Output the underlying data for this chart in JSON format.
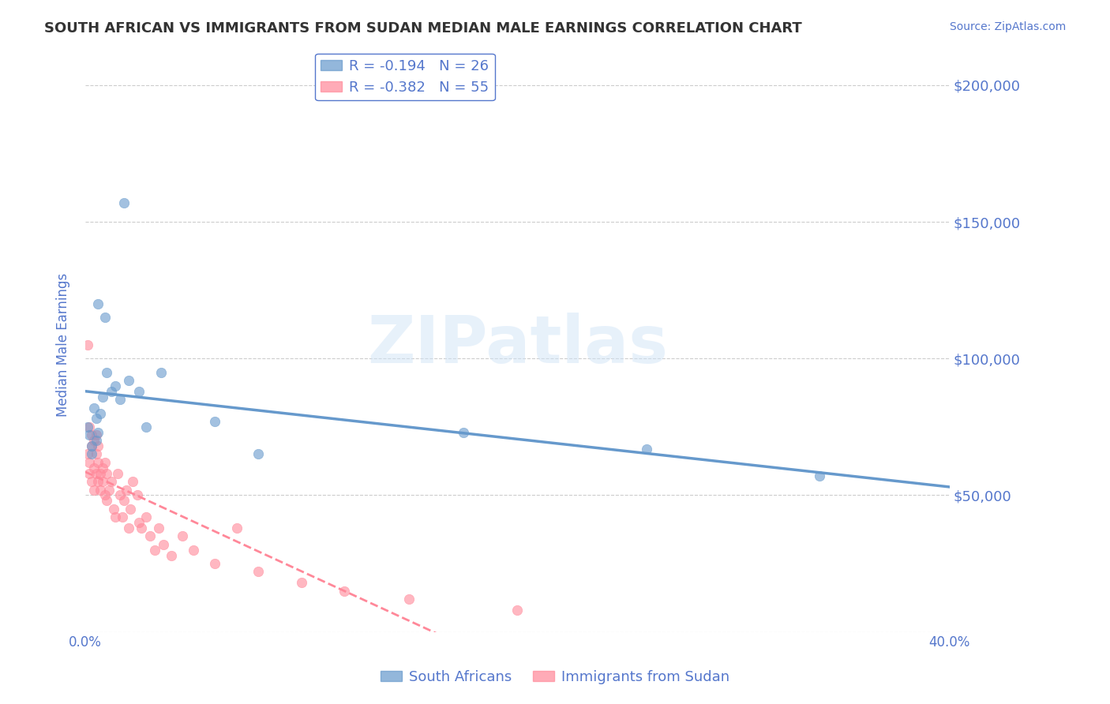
{
  "title": "SOUTH AFRICAN VS IMMIGRANTS FROM SUDAN MEDIAN MALE EARNINGS CORRELATION CHART",
  "source_text": "Source: ZipAtlas.com",
  "xlabel": "",
  "ylabel": "Median Male Earnings",
  "xlim": [
    0.0,
    0.4
  ],
  "ylim": [
    0,
    210000
  ],
  "yticks": [
    0,
    50000,
    100000,
    150000,
    200000
  ],
  "xticks": [
    0.0,
    0.05,
    0.1,
    0.15,
    0.2,
    0.25,
    0.3,
    0.35,
    0.4
  ],
  "xtick_labels": [
    "0.0%",
    "",
    "",
    "",
    "",
    "",
    "",
    "",
    "40.0%"
  ],
  "background_color": "#ffffff",
  "grid_color": "#cccccc",
  "series1_name": "South Africans",
  "series1_color": "#6699cc",
  "series1_R": "-0.194",
  "series1_N": "26",
  "series2_name": "Immigrants from Sudan",
  "series2_color": "#ff8899",
  "series2_R": "-0.382",
  "series2_N": "55",
  "axis_color": "#5577cc",
  "watermark": "ZIPatlas",
  "sa_x": [
    0.001,
    0.002,
    0.003,
    0.003,
    0.004,
    0.005,
    0.005,
    0.006,
    0.006,
    0.007,
    0.008,
    0.009,
    0.01,
    0.012,
    0.014,
    0.016,
    0.018,
    0.02,
    0.025,
    0.028,
    0.035,
    0.06,
    0.08,
    0.175,
    0.26,
    0.34
  ],
  "sa_y": [
    75000,
    72000,
    68000,
    65000,
    82000,
    78000,
    70000,
    120000,
    73000,
    80000,
    86000,
    115000,
    95000,
    88000,
    90000,
    85000,
    157000,
    92000,
    88000,
    75000,
    95000,
    77000,
    65000,
    73000,
    67000,
    57000
  ],
  "sudan_x": [
    0.001,
    0.001,
    0.002,
    0.002,
    0.002,
    0.003,
    0.003,
    0.003,
    0.004,
    0.004,
    0.004,
    0.005,
    0.005,
    0.005,
    0.006,
    0.006,
    0.006,
    0.007,
    0.007,
    0.008,
    0.008,
    0.009,
    0.009,
    0.01,
    0.01,
    0.011,
    0.012,
    0.013,
    0.014,
    0.015,
    0.016,
    0.017,
    0.018,
    0.019,
    0.02,
    0.021,
    0.022,
    0.024,
    0.025,
    0.026,
    0.028,
    0.03,
    0.032,
    0.034,
    0.036,
    0.04,
    0.045,
    0.05,
    0.06,
    0.07,
    0.08,
    0.1,
    0.12,
    0.15,
    0.2
  ],
  "sudan_y": [
    105000,
    65000,
    75000,
    58000,
    62000,
    72000,
    68000,
    55000,
    70000,
    60000,
    52000,
    65000,
    58000,
    72000,
    62000,
    55000,
    68000,
    58000,
    52000,
    60000,
    55000,
    50000,
    62000,
    48000,
    58000,
    52000,
    55000,
    45000,
    42000,
    58000,
    50000,
    42000,
    48000,
    52000,
    38000,
    45000,
    55000,
    50000,
    40000,
    38000,
    42000,
    35000,
    30000,
    38000,
    32000,
    28000,
    35000,
    30000,
    25000,
    38000,
    22000,
    18000,
    15000,
    12000,
    8000
  ]
}
